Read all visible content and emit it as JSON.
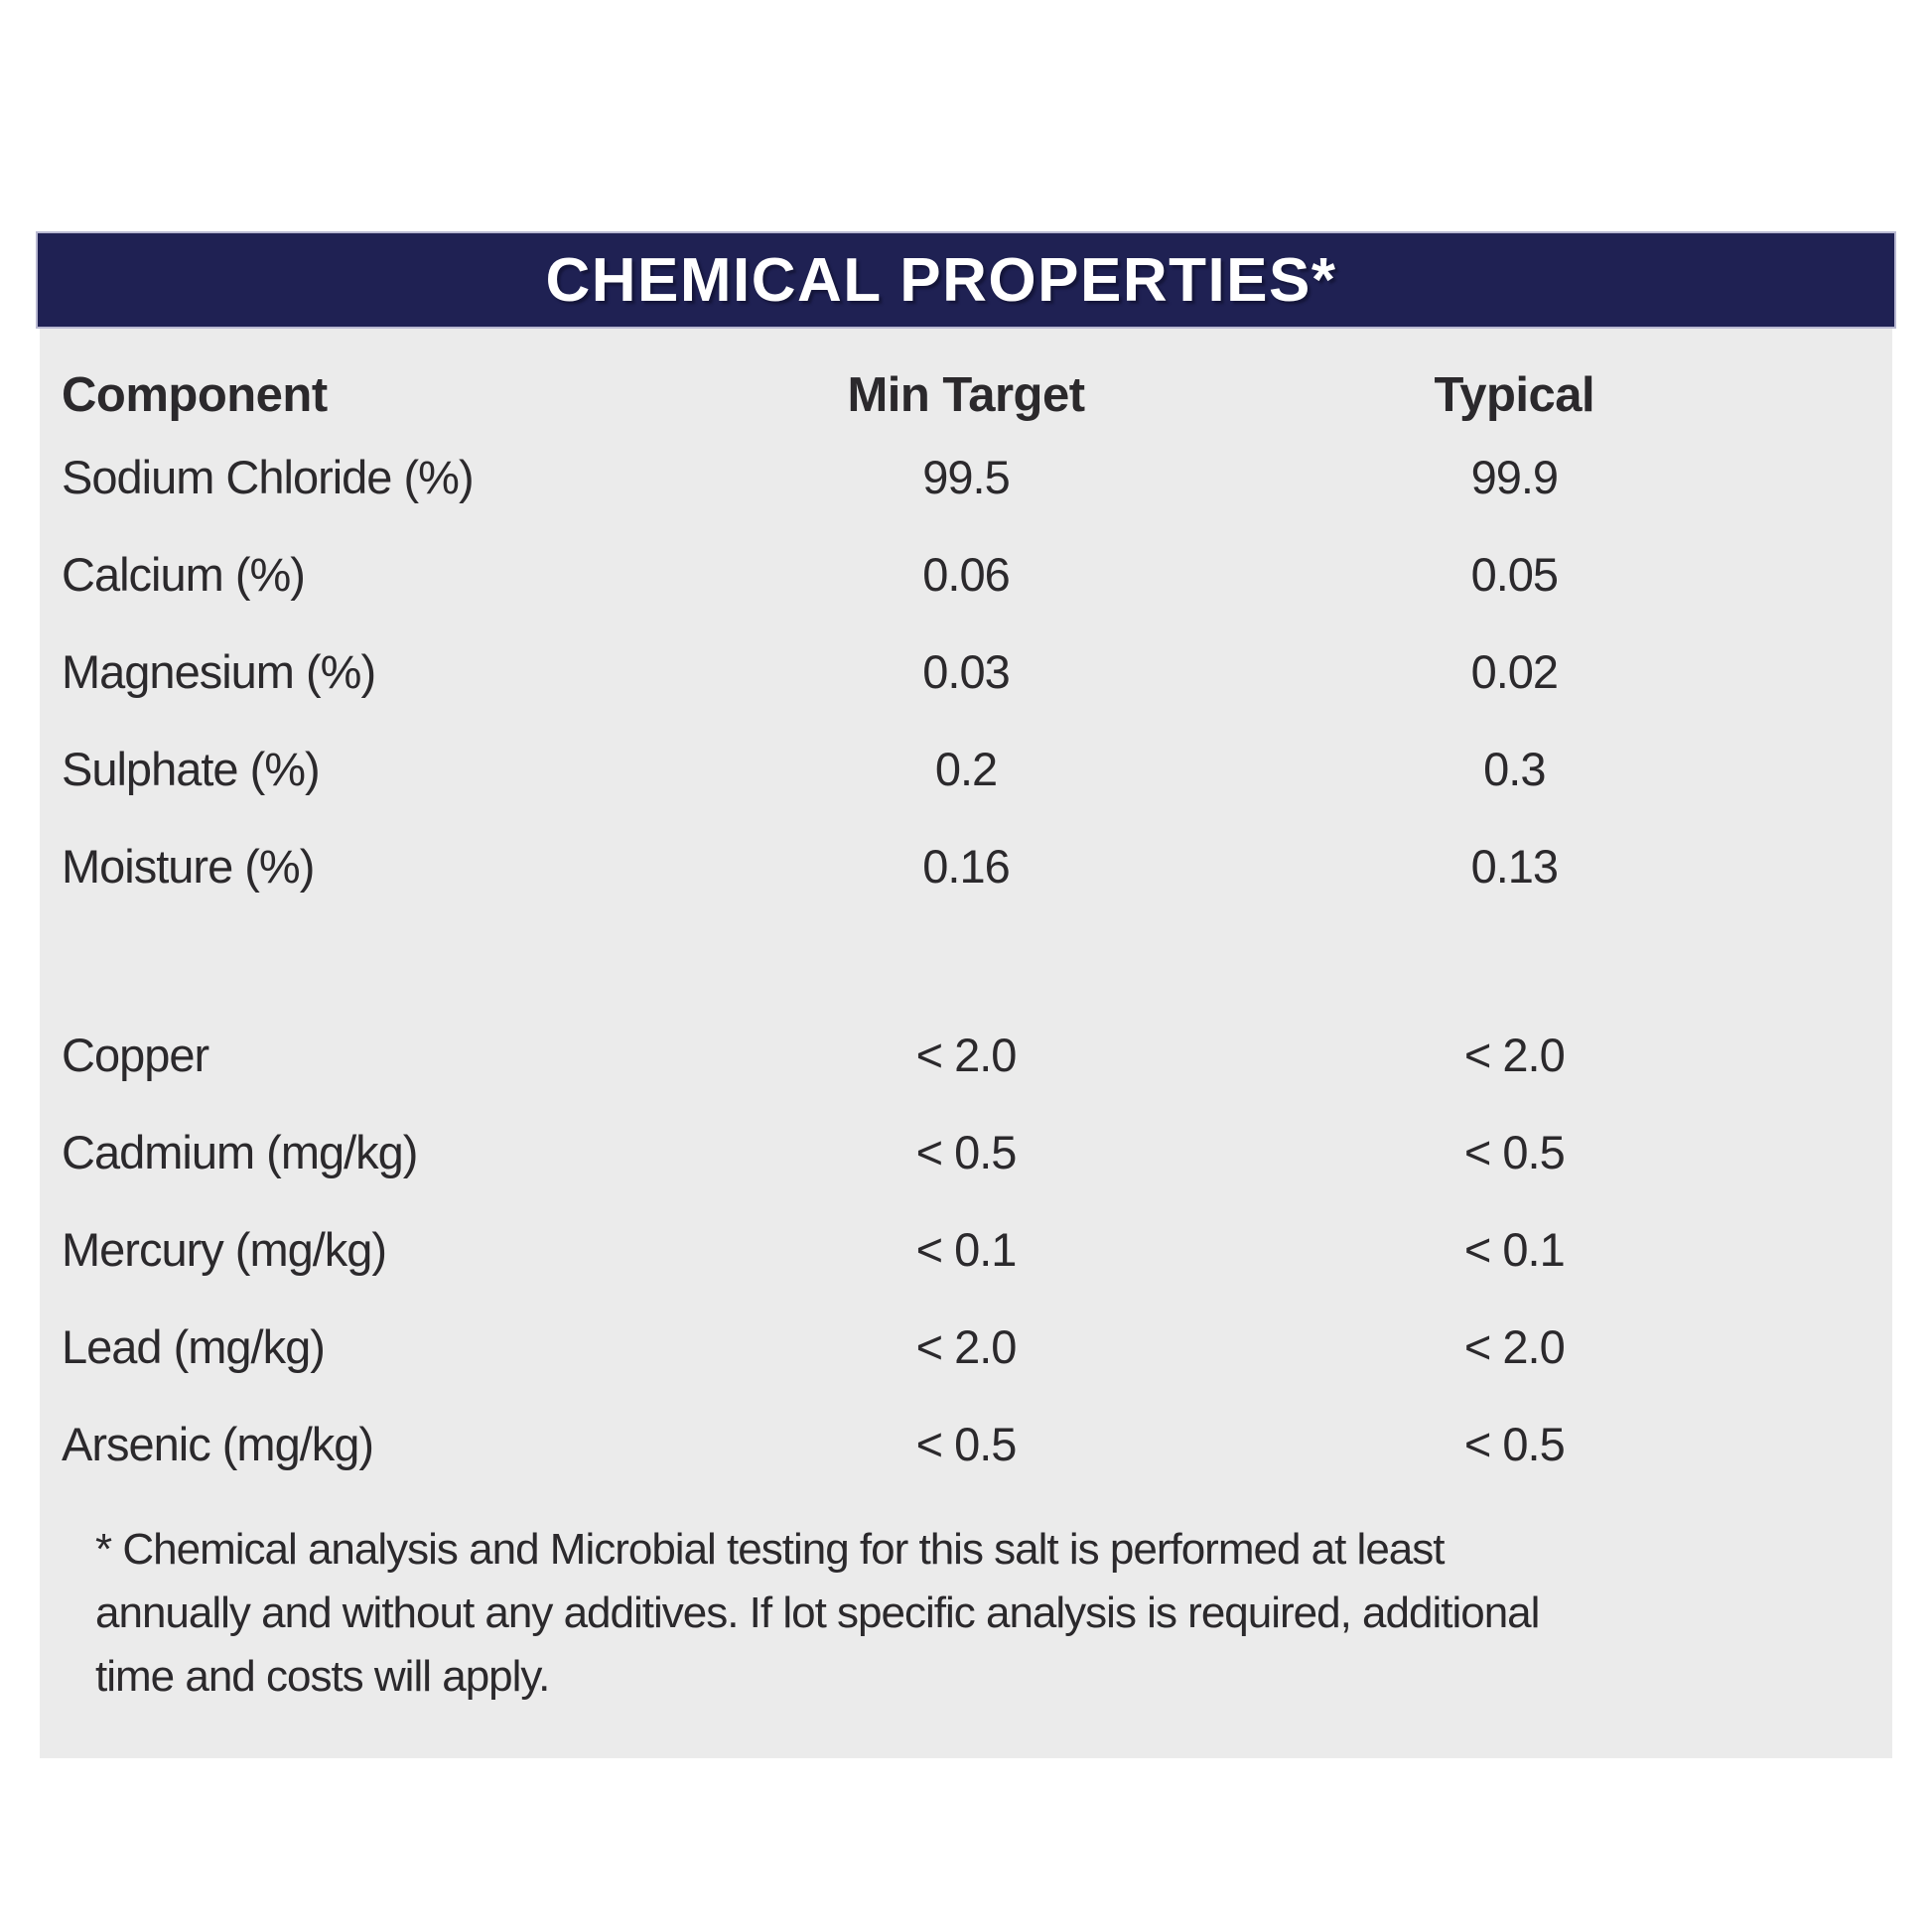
{
  "header": {
    "title": "CHEMICAL PROPERTIES*"
  },
  "table": {
    "columns": [
      "Component",
      "Min Target",
      "Typical"
    ],
    "rows": [
      {
        "component": "Sodium Chloride (%)",
        "min_target": "99.5",
        "typical": "99.9"
      },
      {
        "component": "Calcium (%)",
        "min_target": "0.06",
        "typical": "0.05"
      },
      {
        "component": "Magnesium (%)",
        "min_target": "0.03",
        "typical": "0.02"
      },
      {
        "component": "Sulphate (%)",
        "min_target": "0.2",
        "typical": "0.3"
      },
      {
        "component": "Moisture (%)",
        "min_target": "0.16",
        "typical": "0.13"
      },
      {
        "component": "Copper",
        "min_target": "< 2.0",
        "typical": "< 2.0"
      },
      {
        "component": "Cadmium (mg/kg)",
        "min_target": "< 0.5",
        "typical": "< 0.5"
      },
      {
        "component": "Mercury (mg/kg)",
        "min_target": "< 0.1",
        "typical": "< 0.1"
      },
      {
        "component": "Lead (mg/kg)",
        "min_target": "< 2.0",
        "typical": "< 2.0"
      },
      {
        "component": "Arsenic (mg/kg)",
        "min_target": "< 0.5",
        "typical": "< 0.5"
      }
    ]
  },
  "footnote": {
    "lines": [
      "* Chemical analysis and Microbial testing for this salt is performed at least",
      "annually and without any additives. If lot specific analysis is required, additional",
      "time and costs will apply."
    ]
  },
  "colors": {
    "header_bg": "#1f2153",
    "header_border": "#b9b9d2",
    "panel_bg": "#ebebeb",
    "text": "#2b292c",
    "title_text": "#ffffff"
  }
}
